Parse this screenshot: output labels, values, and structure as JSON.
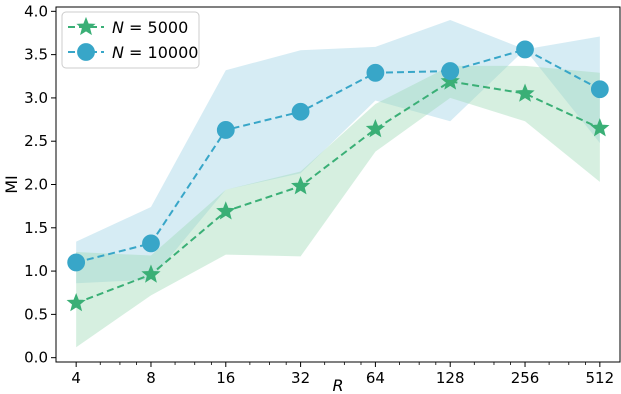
{
  "chart_data": {
    "type": "line",
    "xlabel": "R",
    "ylabel": "MI",
    "x_scale": "log2",
    "x": [
      4,
      8,
      16,
      32,
      64,
      128,
      256,
      512
    ],
    "x_tick_labels": [
      "4",
      "8",
      "16",
      "32",
      "64",
      "128",
      "256",
      "512"
    ],
    "ylim": [
      -0.05,
      4.05
    ],
    "y_ticks": [
      0.0,
      0.5,
      1.0,
      1.5,
      2.0,
      2.5,
      3.0,
      3.5,
      4.0
    ],
    "y_tick_labels": [
      "0.0",
      "0.5",
      "1.0",
      "1.5",
      "2.0",
      "2.5",
      "3.0",
      "3.5",
      "4.0"
    ],
    "grid": false,
    "legend_position": "top-left",
    "series": [
      {
        "name": "N = 5000",
        "legend_italic": "N",
        "legend_value": "5000",
        "color": "#3aaf76",
        "band_color": "#9ed9b6",
        "marker": "star",
        "values": [
          0.63,
          0.96,
          1.69,
          1.98,
          2.64,
          3.19,
          3.05,
          2.65
        ],
        "lower": [
          0.12,
          0.72,
          1.19,
          1.17,
          2.38,
          3.0,
          2.73,
          2.03
        ],
        "upper": [
          1.22,
          1.18,
          1.94,
          2.15,
          2.93,
          3.37,
          3.37,
          3.29
        ]
      },
      {
        "name": "N = 10000",
        "legend_italic": "N",
        "legend_value": "10000",
        "color": "#38a6c8",
        "band_color": "#a4d4e6",
        "marker": "circle",
        "values": [
          1.1,
          1.32,
          2.63,
          2.84,
          3.29,
          3.31,
          3.56,
          3.1
        ],
        "lower": [
          0.86,
          0.9,
          1.94,
          2.13,
          2.97,
          2.73,
          3.56,
          2.48
        ],
        "upper": [
          1.34,
          1.74,
          3.32,
          3.55,
          3.59,
          3.9,
          3.56,
          3.71
        ]
      }
    ]
  }
}
